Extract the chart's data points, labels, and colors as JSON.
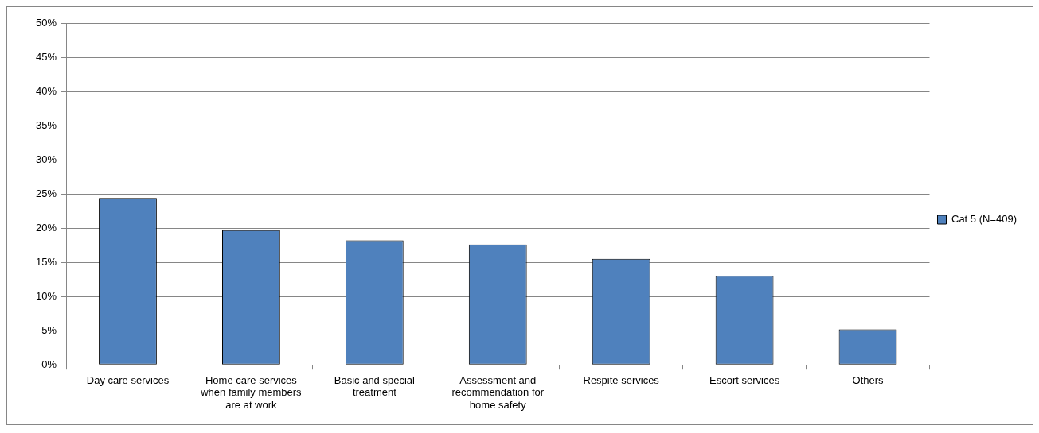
{
  "chart_data": {
    "type": "bar",
    "categories": [
      "Day care services",
      "Home care services when family members are at work",
      "Basic and special treatment",
      "Assessment and recommendation for home safety",
      "Respite services",
      "Escort services",
      "Others"
    ],
    "series": [
      {
        "name": "Cat 5 (N=409)",
        "color": "#4f81bd",
        "values": [
          24.4,
          19.7,
          18.2,
          17.6,
          15.5,
          13.0,
          5.2
        ]
      }
    ],
    "ylim": [
      0,
      50
    ],
    "yticks": [
      {
        "value": 0,
        "label": "0%"
      },
      {
        "value": 5,
        "label": "5%"
      },
      {
        "value": 10,
        "label": "10%"
      },
      {
        "value": 15,
        "label": "15%"
      },
      {
        "value": 20,
        "label": "20%"
      },
      {
        "value": 25,
        "label": "25%"
      },
      {
        "value": 30,
        "label": "30%"
      },
      {
        "value": 35,
        "label": "35%"
      },
      {
        "value": 40,
        "label": "40%"
      },
      {
        "value": 45,
        "label": "45%"
      },
      {
        "value": 50,
        "label": "50%"
      }
    ],
    "grid": "y",
    "legend": "right"
  }
}
